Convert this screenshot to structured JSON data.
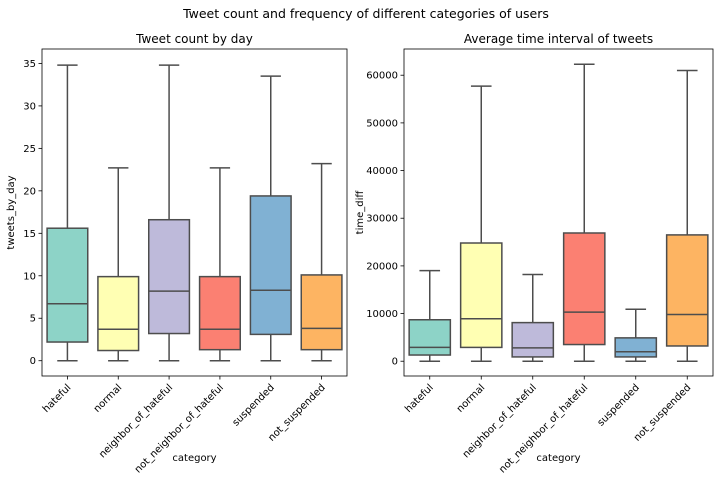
{
  "figure": {
    "title": "Tweet count and frequency of different categories of users"
  },
  "chart_data": [
    {
      "type": "box",
      "title": "Tweet count by day",
      "xlabel": "category",
      "ylabel": "tweets_by_day",
      "categories": [
        "hateful",
        "normal",
        "neighbor_of_hateful",
        "not_neighbor_of_hateful",
        "suspended",
        "not_suspended"
      ],
      "yticks": [
        0,
        5,
        10,
        15,
        20,
        25,
        30,
        35
      ],
      "ylim": [
        -1.8,
        36.7
      ],
      "boxes": [
        {
          "whislo": 0,
          "q1": 2.2,
          "med": 6.7,
          "q3": 15.6,
          "whishi": 34.8,
          "color": "#8dd3c7"
        },
        {
          "whislo": 0,
          "q1": 1.2,
          "med": 3.7,
          "q3": 9.9,
          "whishi": 22.7,
          "color": "#ffffb3"
        },
        {
          "whislo": 0,
          "q1": 3.2,
          "med": 8.2,
          "q3": 16.6,
          "whishi": 34.8,
          "color": "#bebada"
        },
        {
          "whislo": 0,
          "q1": 1.3,
          "med": 3.7,
          "q3": 9.9,
          "whishi": 22.7,
          "color": "#fb8072"
        },
        {
          "whislo": 0,
          "q1": 3.1,
          "med": 8.3,
          "q3": 19.4,
          "whishi": 33.5,
          "color": "#80b1d3"
        },
        {
          "whislo": 0,
          "q1": 1.3,
          "med": 3.8,
          "q3": 10.1,
          "whishi": 23.2,
          "color": "#fdb462"
        }
      ]
    },
    {
      "type": "box",
      "title": "Average time interval of tweets",
      "xlabel": "category",
      "ylabel": "time_diff",
      "categories": [
        "hateful",
        "normal",
        "neighbor_of_hateful",
        "not_neighbor_of_hateful",
        "suspended",
        "not_suspended"
      ],
      "yticks": [
        0,
        10000,
        20000,
        30000,
        40000,
        50000,
        60000
      ],
      "ylim": [
        -3100,
        65500
      ],
      "boxes": [
        {
          "whislo": 0,
          "q1": 1300,
          "med": 2900,
          "q3": 8700,
          "whishi": 19000,
          "color": "#8dd3c7"
        },
        {
          "whislo": 0,
          "q1": 2900,
          "med": 8900,
          "q3": 24800,
          "whishi": 57700,
          "color": "#ffffb3"
        },
        {
          "whislo": 0,
          "q1": 900,
          "med": 2800,
          "q3": 8100,
          "whishi": 18200,
          "color": "#bebada"
        },
        {
          "whislo": 0,
          "q1": 3500,
          "med": 10300,
          "q3": 26900,
          "whishi": 62300,
          "color": "#fb8072"
        },
        {
          "whislo": 0,
          "q1": 900,
          "med": 2000,
          "q3": 4900,
          "whishi": 10900,
          "color": "#80b1d3"
        },
        {
          "whislo": 0,
          "q1": 3200,
          "med": 9800,
          "q3": 26500,
          "whishi": 61000,
          "color": "#fdb462"
        }
      ]
    }
  ]
}
